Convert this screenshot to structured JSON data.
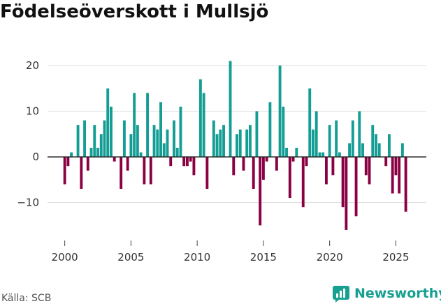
{
  "chart_data": {
    "type": "bar",
    "title": "Födelseöverskott i Mullsjö",
    "xlabel": "",
    "ylabel": "",
    "x_ticks": [
      "2000",
      "2005",
      "2010",
      "2015",
      "2020",
      "2025"
    ],
    "y_ticks": [
      "20",
      "10",
      "0",
      "−10"
    ],
    "xlim": [
      1998.7,
      2027.3
    ],
    "ylim": [
      -18.3,
      25.2
    ],
    "grid": true,
    "colors": {
      "positive": "#139d94",
      "negative": "#8b0043"
    },
    "series": [
      {
        "name": "Födelseöverskott",
        "x": [
          2000.0,
          2000.25,
          2000.5,
          2000.75,
          2001.0,
          2001.25,
          2001.5,
          2001.75,
          2002.0,
          2002.25,
          2002.5,
          2002.75,
          2003.0,
          2003.25,
          2003.5,
          2003.75,
          2004.0,
          2004.25,
          2004.5,
          2004.75,
          2005.0,
          2005.25,
          2005.5,
          2005.75,
          2006.0,
          2006.25,
          2006.5,
          2006.75,
          2007.0,
          2007.25,
          2007.5,
          2007.75,
          2008.0,
          2008.25,
          2008.5,
          2008.75,
          2009.0,
          2009.25,
          2009.5,
          2009.75,
          2010.0,
          2010.25,
          2010.5,
          2010.75,
          2011.0,
          2011.25,
          2011.5,
          2011.75,
          2012.0,
          2012.25,
          2012.5,
          2012.75,
          2013.0,
          2013.25,
          2013.5,
          2013.75,
          2014.0,
          2014.25,
          2014.5,
          2014.75,
          2015.0,
          2015.25,
          2015.5,
          2015.75,
          2016.0,
          2016.25,
          2016.5,
          2016.75,
          2017.0,
          2017.25,
          2017.5,
          2017.75,
          2018.0,
          2018.25,
          2018.5,
          2018.75,
          2019.0,
          2019.25,
          2019.5,
          2019.75,
          2020.0,
          2020.25,
          2020.5,
          2020.75,
          2021.0,
          2021.25,
          2021.5,
          2021.75,
          2022.0,
          2022.25,
          2022.5,
          2022.75,
          2023.0,
          2023.25,
          2023.5,
          2023.75,
          2024.0,
          2024.25,
          2024.5,
          2024.75,
          2025.0,
          2025.25,
          2025.5,
          2025.75
        ],
        "values": [
          -6,
          -2,
          1,
          0,
          7,
          -7,
          8,
          -3,
          2,
          7,
          2,
          5,
          8,
          15,
          11,
          -1,
          0,
          -7,
          8,
          -3,
          5,
          14,
          7,
          1,
          -6,
          14,
          -6,
          7,
          6,
          12,
          3,
          6,
          -2,
          8,
          2,
          11,
          -2,
          -2,
          -1,
          -4,
          0,
          17,
          14,
          -7,
          0,
          8,
          5,
          6,
          7,
          0,
          21,
          -4,
          5,
          6,
          -3,
          6,
          7,
          -7,
          10,
          -15,
          -5,
          -1,
          12,
          0,
          -3,
          20,
          11,
          2,
          -9,
          -1,
          2,
          0,
          -11,
          -2,
          15,
          6,
          10,
          1,
          1,
          -6,
          7,
          -4,
          8,
          1,
          -11,
          -16,
          3,
          8,
          -13,
          10,
          3,
          -4,
          -6,
          7,
          5,
          3,
          0,
          -2,
          5,
          -8,
          -4,
          -8,
          3,
          -12
        ]
      }
    ]
  },
  "footer": {
    "source": "Källa: SCB",
    "brand": "Newsworthy"
  }
}
